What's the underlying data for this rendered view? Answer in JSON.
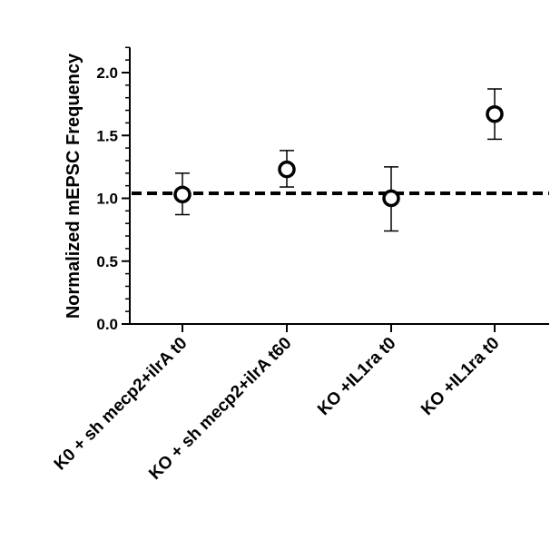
{
  "chart_data": {
    "type": "scatter",
    "title": "",
    "xlabel": "",
    "ylabel": "Normalized mEPSC Frequency",
    "ylim": [
      0.0,
      2.2
    ],
    "yticks": [
      "0.0",
      "0.5",
      "1.0",
      "1.5",
      "2.0"
    ],
    "y_minor_step": 0.1,
    "categories": [
      "K0 + sh mecp2+ilrA t0",
      "KO + sh mecp2+ilrA t60",
      "KO +IL1ra t0",
      "KO +IL1ra t0"
    ],
    "series": [
      {
        "marker": "open-circle",
        "values": [
          1.03,
          1.23,
          1.0,
          1.67
        ],
        "error_low": [
          0.87,
          1.09,
          0.74,
          1.47
        ],
        "error_high": [
          1.2,
          1.38,
          1.25,
          1.87
        ]
      }
    ],
    "reference_line": {
      "y": 1.04,
      "style": "dashed"
    },
    "grid": false,
    "legend": "none"
  }
}
